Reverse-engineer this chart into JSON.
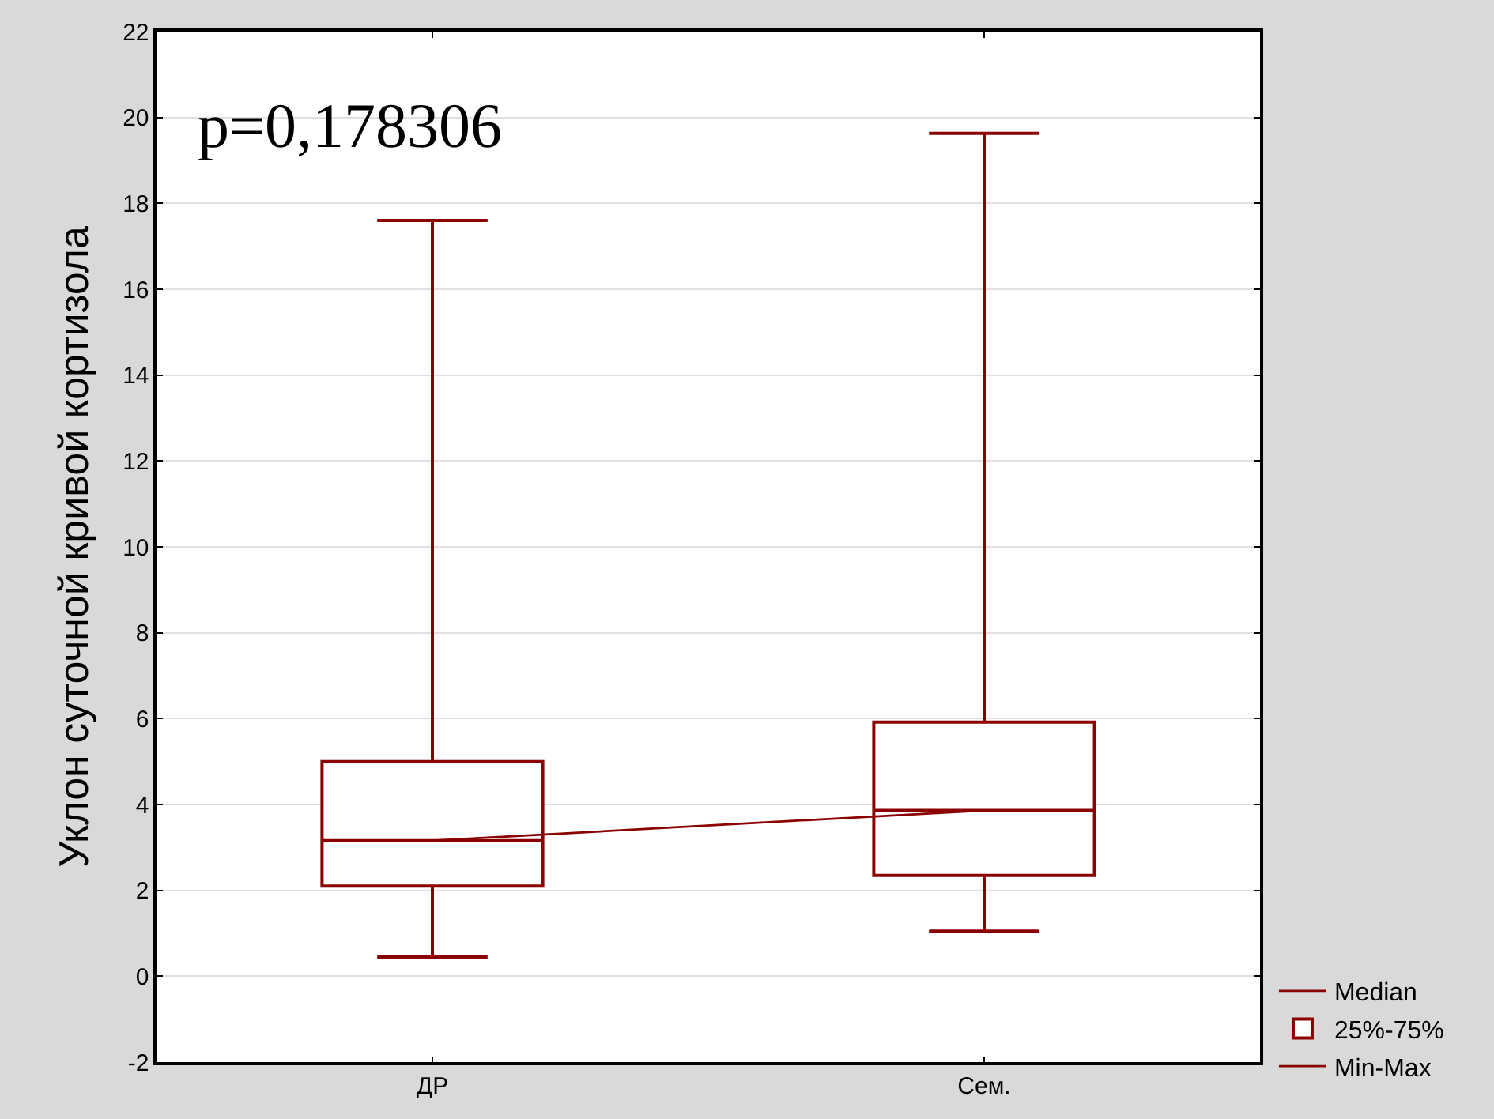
{
  "chart_data": {
    "type": "box",
    "categories": [
      "ДР",
      "Сем."
    ],
    "ylabel": "Уклон суточной кривой кортизола",
    "ylim": [
      -2,
      22
    ],
    "yticks": [
      -2,
      0,
      2,
      4,
      6,
      8,
      10,
      12,
      14,
      16,
      18,
      20,
      22
    ],
    "grid": "y",
    "legend": "bottom right",
    "annotations": [
      "p=0,178306"
    ],
    "series": [
      {
        "name": "Median",
        "type": "line",
        "color": "#8b0000",
        "values": [
          3.16,
          3.86
        ]
      },
      {
        "name": "25%-75%",
        "color": "#8b0000",
        "boxes": [
          {
            "low": 0.45,
            "q1": 2.1,
            "median": 3.16,
            "q3": 5.0,
            "high": 17.6
          },
          {
            "low": 1.05,
            "q1": 2.35,
            "median": 3.86,
            "q3": 5.92,
            "high": 19.63
          }
        ]
      },
      {
        "name": "Min-Max",
        "color": "#8b0000",
        "values": [
          null,
          null
        ]
      }
    ]
  }
}
